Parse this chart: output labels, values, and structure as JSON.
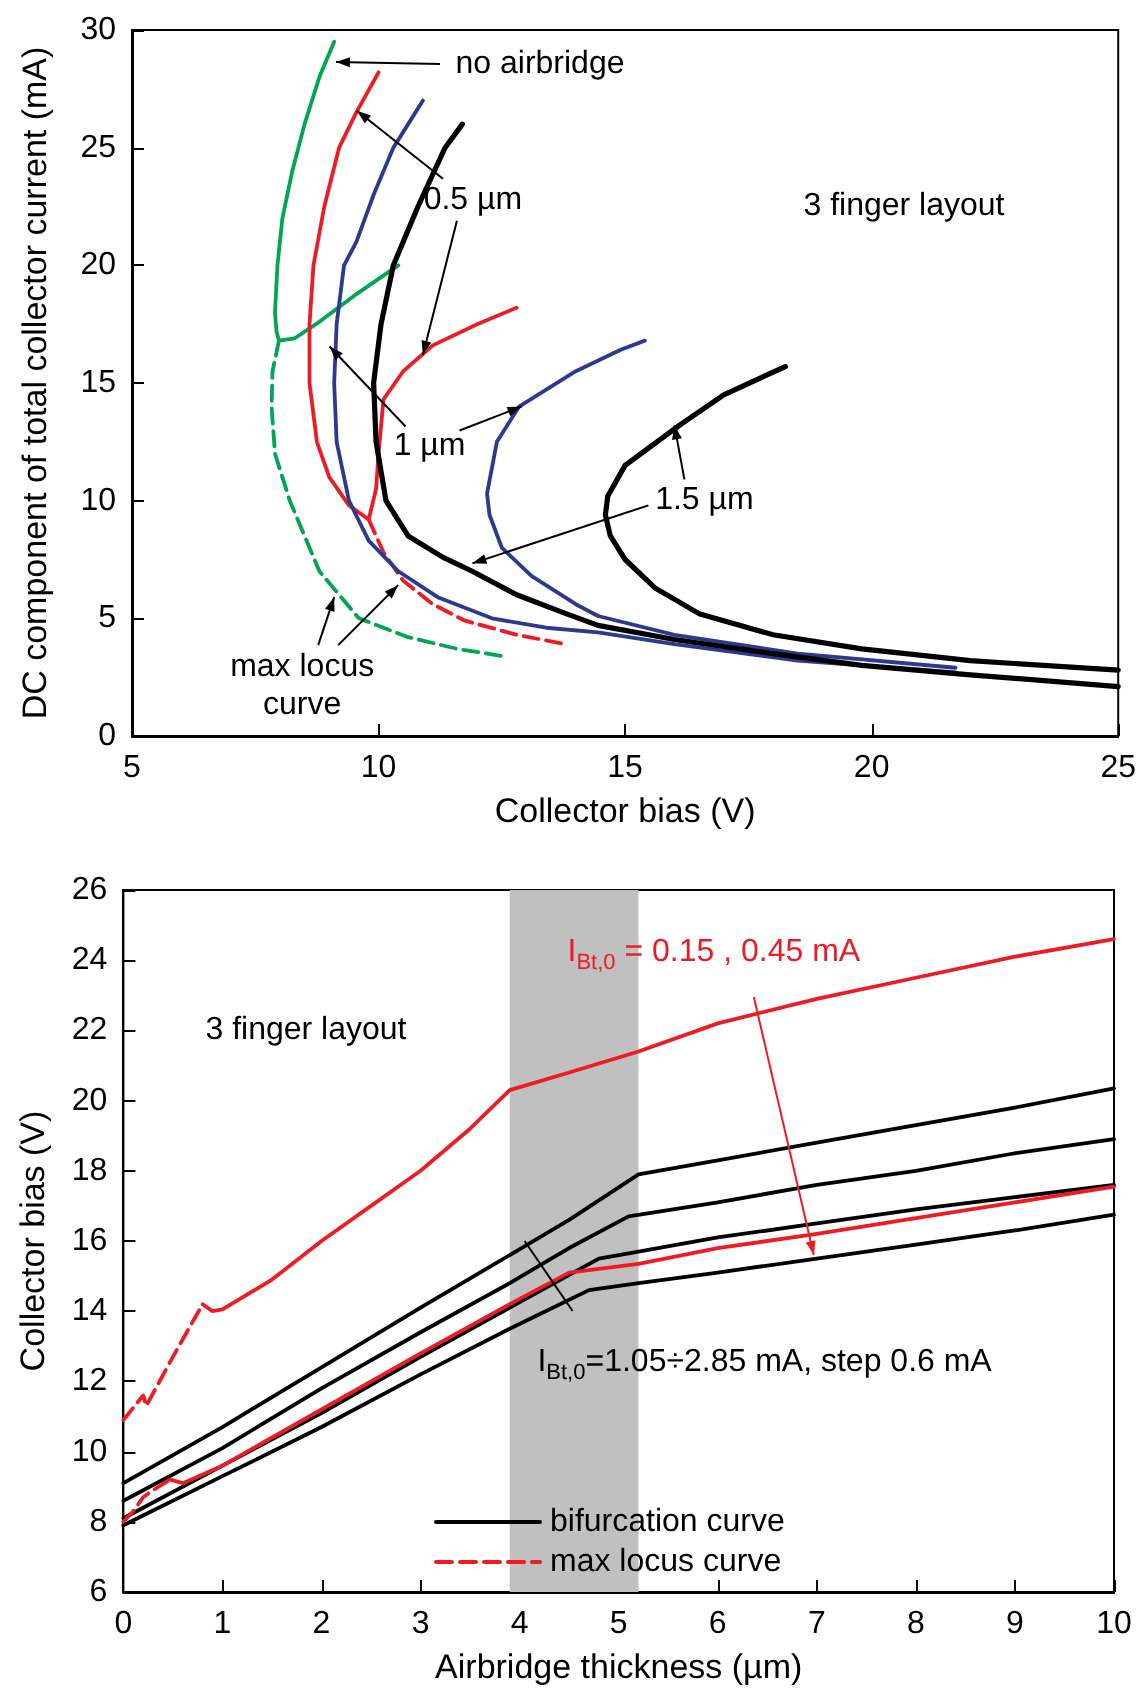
{
  "chart_data": [
    {
      "type": "line",
      "xlabel": "Collector bias (V)",
      "ylabel": "DC component of total collector current (mA)",
      "xlim": [
        5,
        25
      ],
      "ylim": [
        0,
        30
      ],
      "xticks": [
        5,
        10,
        15,
        20,
        25
      ],
      "yticks": [
        0,
        5,
        10,
        15,
        20,
        25,
        30
      ],
      "grid": false,
      "marker": "none",
      "line_style": "solid",
      "series": [
        {
          "color": "#00a651",
          "x": [
            9.1,
            8.8,
            8.5,
            8.25,
            8.05,
            7.95,
            7.9,
            7.93,
            7.98,
            8.3,
            8.8,
            9.5,
            10.4
          ],
          "values": [
            29.5,
            28,
            26,
            24,
            22,
            20,
            18,
            17.2,
            16.8,
            16.9,
            17.6,
            18.7,
            20.0
          ]
        },
        {
          "color": "#00a651",
          "line_style": "dashed",
          "x": [
            7.98,
            7.85,
            7.83,
            7.9,
            8.2,
            8.8,
            9.6,
            10.6,
            11.6,
            12.5
          ],
          "values": [
            16.8,
            15.5,
            14,
            12,
            10,
            7,
            5,
            4.2,
            3.7,
            3.4
          ]
        },
        {
          "color": "#ed1c24",
          "x": [
            10.0,
            9.55,
            9.2,
            8.9,
            8.68,
            8.6,
            8.6,
            8.75,
            9.0,
            9.4,
            9.8,
            9.95,
            10.0,
            10.1,
            10.5,
            11.1,
            12.0,
            12.8
          ],
          "values": [
            28.2,
            26.5,
            25,
            22.5,
            20,
            17.5,
            15,
            12.5,
            11,
            9.8,
            9.2,
            10.5,
            12,
            14.3,
            15.5,
            16.6,
            17.5,
            18.2
          ]
        },
        {
          "color": "#ed1c24",
          "line_style": "dashed",
          "x": [
            9.8,
            10.1,
            10.5,
            11.1,
            11.75,
            12.8,
            13.8
          ],
          "values": [
            9.2,
            7.8,
            6.6,
            5.6,
            4.9,
            4.3,
            3.9
          ]
        },
        {
          "color": "#2b3990",
          "x": [
            10.9,
            10.6,
            10.3,
            9.9,
            9.55,
            9.3,
            9.15,
            9.1,
            9.15,
            9.4,
            9.8,
            10.4,
            11.2,
            12.3,
            13.4,
            14.45,
            16,
            18.5,
            21.7
          ],
          "values": [
            27,
            26,
            25,
            23,
            21,
            20,
            17.5,
            15,
            12.5,
            10,
            8.3,
            7,
            5.9,
            5.0,
            4.6,
            4.4,
            3.9,
            3.2,
            2.7
          ]
        },
        {
          "color": "#2b3990",
          "x": [
            15.4,
            14.9,
            14,
            12.85,
            12.4,
            12.2,
            12.25,
            12.5,
            13.1,
            14,
            14.45,
            16,
            18.5,
            21.7
          ],
          "values": [
            16.8,
            16.4,
            15.5,
            14.0,
            12.5,
            10.3,
            9.4,
            8,
            6.8,
            5.6,
            5.1,
            4.3,
            3.5,
            2.9
          ]
        },
        {
          "color": "#000000",
          "x": [
            11.7,
            11.35,
            10.8,
            10.3,
            10.05,
            9.9,
            9.95,
            10.15,
            10.6,
            11.3,
            11.9,
            12.8,
            13.8,
            14.45,
            16,
            18,
            19.8,
            22,
            25
          ],
          "values": [
            26,
            25,
            22.5,
            20,
            17.5,
            15,
            12.5,
            10,
            8.5,
            7.6,
            7.0,
            6.0,
            5.2,
            4.7,
            4.1,
            3.5,
            3.0,
            2.6,
            2.1
          ]
        },
        {
          "color": "#000000",
          "x": [
            18.25,
            17,
            16.1,
            15.0,
            14.65,
            14.6,
            14.7,
            15.0,
            15.6,
            16.5,
            18,
            19.8,
            22,
            25
          ],
          "values": [
            15.7,
            14.5,
            13.2,
            11.5,
            10.2,
            9.4,
            8.5,
            7.5,
            6.3,
            5.2,
            4.3,
            3.7,
            3.2,
            2.8
          ]
        }
      ],
      "annotations": [
        "no airbridge",
        {
          "text": "0.5 µm",
          "x": 10.9,
          "y": 16.2
        },
        {
          "text": "1 µm",
          "x": 12.9,
          "y": 14.0
        },
        {
          "text": "1.5 µm",
          "x": 16.0,
          "y": 13.2
        },
        "3 finger layout",
        {
          "text": "max locus curve",
          "x": 9.1,
          "y": 5.9
        }
      ]
    },
    {
      "type": "line",
      "xlabel": "Airbridge thickness (µm)",
      "ylabel": "Collector bias (V)",
      "xlim": [
        0,
        10
      ],
      "ylim": [
        6,
        26
      ],
      "xticks": [
        0,
        1,
        2,
        3,
        4,
        5,
        6,
        7,
        8,
        9,
        10
      ],
      "yticks": [
        6,
        8,
        10,
        12,
        14,
        16,
        18,
        20,
        22,
        24,
        26
      ],
      "grid": false,
      "marker": "none",
      "line_style": "solid",
      "legend": "bottom",
      "bands": [
        {
          "axis": "x",
          "from": 3.9,
          "to": 5.2,
          "color": "#c0c0c0"
        }
      ],
      "series": [
        {
          "color": "#ed1c24",
          "x": [
            0.8,
            0.9,
            1,
            1.5,
            2,
            2.5,
            3,
            3.5,
            3.9,
            4.5,
            5.2,
            6,
            7,
            8,
            9,
            10
          ],
          "values": [
            14.2,
            14.0,
            14.05,
            14.9,
            16.0,
            17.0,
            18.0,
            19.2,
            20.3,
            20.8,
            21.4,
            22.2,
            22.9,
            23.5,
            24.1,
            24.6
          ]
        },
        {
          "color": "#ed1c24",
          "line_style": "dashed",
          "x": [
            0,
            0.2,
            0.23,
            0.5,
            0.8
          ],
          "values": [
            10.9,
            11.6,
            11.3,
            12.7,
            14.2
          ]
        },
        {
          "name": "bifurcation curve",
          "color": "#000000",
          "x": [
            0,
            1,
            2,
            3,
            3.9,
            4.5,
            5.2,
            6,
            7,
            8,
            9,
            10
          ],
          "values": [
            9.1,
            10.7,
            12.4,
            14.1,
            15.6,
            16.6,
            17.9,
            18.3,
            18.8,
            19.3,
            19.8,
            20.35
          ]
        },
        {
          "color": "#000000",
          "x": [
            0,
            1,
            2,
            3,
            3.9,
            4.5,
            5.1,
            6,
            7,
            8,
            9,
            10
          ],
          "values": [
            8.6,
            10.1,
            11.8,
            13.4,
            14.8,
            15.8,
            16.7,
            17.1,
            17.6,
            18.0,
            18.5,
            18.9
          ]
        },
        {
          "color": "#000000",
          "x": [
            0,
            1,
            2,
            3,
            3.9,
            4.8,
            5.2,
            6,
            7,
            8,
            9,
            10
          ],
          "values": [
            8.1,
            9.6,
            11.1,
            12.7,
            14.1,
            15.5,
            15.7,
            16.1,
            16.5,
            16.9,
            17.25,
            17.6
          ]
        },
        {
          "color": "#000000",
          "x": [
            0,
            1,
            2,
            3,
            3.9,
            4.7,
            5.2,
            6,
            7,
            8,
            9,
            10
          ],
          "values": [
            7.9,
            9.3,
            10.7,
            12.2,
            13.5,
            14.6,
            14.8,
            15.1,
            15.5,
            15.9,
            16.3,
            16.75
          ]
        },
        {
          "color": "#ed1c24",
          "x": [
            0.47,
            0.6,
            1,
            2,
            3,
            3.9,
            4.5,
            5.2,
            6,
            7,
            8,
            9,
            10
          ],
          "values": [
            9.2,
            9.1,
            9.6,
            11.2,
            12.8,
            14.2,
            15.1,
            15.35,
            15.8,
            16.2,
            16.65,
            17.1,
            17.55
          ]
        },
        {
          "name": "max locus curve",
          "color": "#ed1c24",
          "line_style": "dashed",
          "x": [
            0,
            0.1,
            0.2,
            0.3,
            0.47
          ],
          "values": [
            8.0,
            8.3,
            8.7,
            8.9,
            9.2
          ]
        }
      ],
      "annotations": [
        "3 finger layout",
        {
          "text": "I$_{Bt,0}$ = 0.15 , 0.45 mA",
          "x": 6.97,
          "y": 15.6
        },
        {
          "text": "I$_{Bt,0}$=1.05÷2.85 mA, step 0.6 mA",
          "x": 4.05,
          "y": 16.0
        }
      ]
    }
  ]
}
